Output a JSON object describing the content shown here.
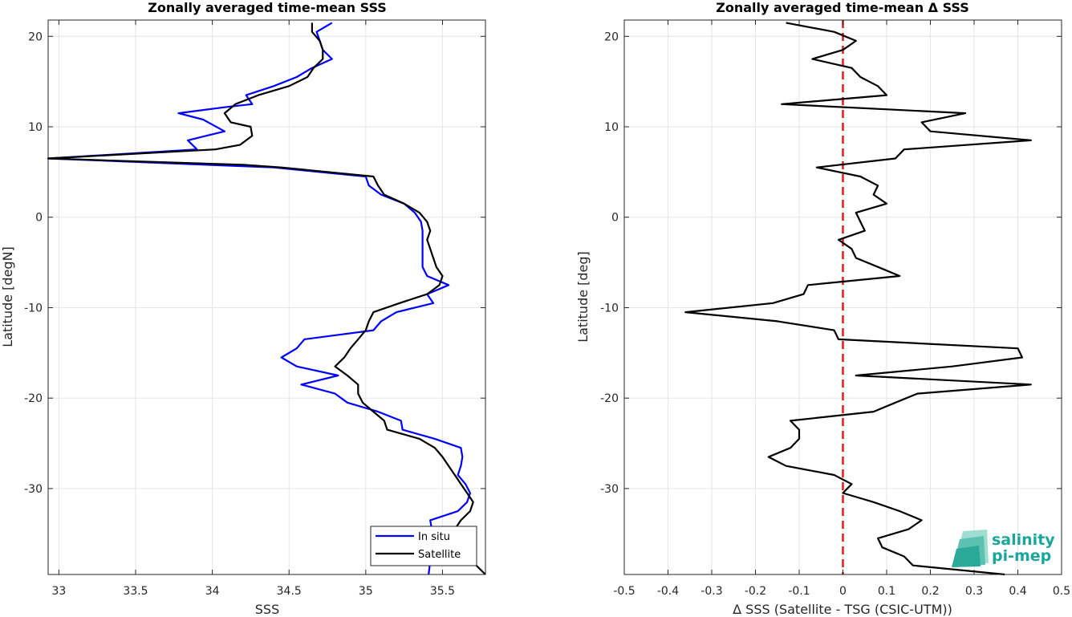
{
  "chart_data": [
    {
      "type": "line",
      "title": "Zonally averaged time-mean SSS",
      "xlabel": "SSS",
      "ylabel": "Latitude [degN]",
      "xlim": [
        32.93,
        35.78
      ],
      "ylim": [
        -39.5,
        21.8
      ],
      "xticks": [
        33,
        33.5,
        34,
        34.5,
        35,
        35.5
      ],
      "yticks": [
        -30,
        -20,
        -10,
        0,
        10,
        20
      ],
      "grid": true,
      "legend": "bottom-right",
      "series": [
        {
          "name": "In situ",
          "color": "#0000ff",
          "points": [
            [
              34.78,
              21.5
            ],
            [
              34.68,
              20.5
            ],
            [
              34.7,
              19.5
            ],
            [
              34.72,
              18.5
            ],
            [
              34.78,
              17.5
            ],
            [
              34.65,
              16.5
            ],
            [
              34.55,
              15.5
            ],
            [
              34.4,
              14.5
            ],
            [
              34.22,
              13.5
            ],
            [
              34.26,
              12.5
            ],
            [
              34.1,
              12.2
            ],
            [
              33.78,
              11.5
            ],
            [
              33.94,
              10.8
            ],
            [
              34.08,
              9.5
            ],
            [
              33.84,
              8.5
            ],
            [
              33.9,
              7.5
            ],
            [
              32.93,
              6.5
            ],
            [
              34.4,
              5.5
            ],
            [
              35.0,
              4.5
            ],
            [
              35.02,
              3.5
            ],
            [
              35.1,
              2.5
            ],
            [
              35.25,
              1.5
            ],
            [
              35.32,
              0.5
            ],
            [
              35.36,
              -0.5
            ],
            [
              35.37,
              -1.5
            ],
            [
              35.37,
              -2.5
            ],
            [
              35.37,
              -3.5
            ],
            [
              35.37,
              -4.5
            ],
            [
              35.37,
              -5.5
            ],
            [
              35.4,
              -6.5
            ],
            [
              35.54,
              -7.5
            ],
            [
              35.4,
              -8.5
            ],
            [
              35.44,
              -9.5
            ],
            [
              35.2,
              -10.5
            ],
            [
              35.1,
              -11.5
            ],
            [
              35.05,
              -12.5
            ],
            [
              34.6,
              -13.5
            ],
            [
              34.55,
              -14.5
            ],
            [
              34.45,
              -15.5
            ],
            [
              34.55,
              -16.5
            ],
            [
              34.82,
              -17.5
            ],
            [
              34.58,
              -18.5
            ],
            [
              34.8,
              -19.5
            ],
            [
              34.88,
              -20.5
            ],
            [
              35.08,
              -21.5
            ],
            [
              35.23,
              -22.5
            ],
            [
              35.24,
              -23.5
            ],
            [
              35.45,
              -24.5
            ],
            [
              35.62,
              -25.5
            ],
            [
              35.63,
              -26.5
            ],
            [
              35.62,
              -27.5
            ],
            [
              35.6,
              -28.5
            ],
            [
              35.65,
              -29.5
            ],
            [
              35.68,
              -30.5
            ],
            [
              35.66,
              -31.5
            ],
            [
              35.6,
              -32.5
            ],
            [
              35.42,
              -33.5
            ],
            [
              35.43,
              -34.5
            ],
            [
              35.42,
              -36.5
            ],
            [
              35.42,
              -38.0
            ],
            [
              35.41,
              -39.5
            ]
          ]
        },
        {
          "name": "Satellite",
          "color": "#000000",
          "points": [
            [
              34.65,
              21.5
            ],
            [
              34.65,
              20.5
            ],
            [
              34.7,
              19.5
            ],
            [
              34.72,
              18.5
            ],
            [
              34.72,
              17.5
            ],
            [
              34.66,
              16.5
            ],
            [
              34.62,
              15.5
            ],
            [
              34.5,
              14.5
            ],
            [
              34.3,
              13.5
            ],
            [
              34.15,
              12.5
            ],
            [
              34.08,
              11.5
            ],
            [
              34.12,
              10.5
            ],
            [
              34.25,
              10.0
            ],
            [
              34.26,
              9.0
            ],
            [
              34.18,
              8.0
            ],
            [
              34.02,
              7.5
            ],
            [
              32.93,
              6.5
            ],
            [
              34.2,
              5.8
            ],
            [
              34.45,
              5.5
            ],
            [
              35.05,
              4.5
            ],
            [
              35.08,
              3.5
            ],
            [
              35.12,
              2.5
            ],
            [
              35.25,
              1.5
            ],
            [
              35.35,
              0.5
            ],
            [
              35.4,
              -0.5
            ],
            [
              35.42,
              -1.5
            ],
            [
              35.4,
              -2.5
            ],
            [
              35.42,
              -3.5
            ],
            [
              35.44,
              -4.5
            ],
            [
              35.46,
              -5.5
            ],
            [
              35.5,
              -6.5
            ],
            [
              35.48,
              -7.5
            ],
            [
              35.4,
              -8.5
            ],
            [
              35.22,
              -9.5
            ],
            [
              35.05,
              -10.5
            ],
            [
              35.02,
              -11.5
            ],
            [
              35.0,
              -12.5
            ],
            [
              34.95,
              -13.5
            ],
            [
              34.9,
              -14.5
            ],
            [
              34.86,
              -15.5
            ],
            [
              34.8,
              -16.5
            ],
            [
              34.88,
              -17.5
            ],
            [
              34.95,
              -18.5
            ],
            [
              34.95,
              -19.5
            ],
            [
              34.98,
              -20.5
            ],
            [
              35.05,
              -21.5
            ],
            [
              35.12,
              -22.5
            ],
            [
              35.14,
              -23.5
            ],
            [
              35.35,
              -24.5
            ],
            [
              35.45,
              -25.5
            ],
            [
              35.5,
              -26.5
            ],
            [
              35.54,
              -27.5
            ],
            [
              35.58,
              -28.5
            ],
            [
              35.62,
              -29.5
            ],
            [
              35.66,
              -30.5
            ],
            [
              35.7,
              -31.5
            ],
            [
              35.68,
              -32.5
            ],
            [
              35.62,
              -33.5
            ],
            [
              35.58,
              -34.5
            ],
            [
              35.6,
              -35.5
            ],
            [
              35.62,
              -36.5
            ],
            [
              35.66,
              -37.5
            ],
            [
              35.72,
              -38.5
            ],
            [
              35.78,
              -39.5
            ]
          ]
        }
      ]
    },
    {
      "type": "line",
      "title": "Zonally averaged time-mean Δ SSS",
      "xlabel": "Δ SSS (Satellite - TSG (CSIC-UTM))",
      "ylabel": "Latitude [deg]",
      "xlim": [
        -0.5,
        0.5
      ],
      "ylim": [
        -39.5,
        21.8
      ],
      "xticks": [
        -0.5,
        -0.4,
        -0.3,
        -0.2,
        -0.1,
        0,
        0.1,
        0.2,
        0.3,
        0.4,
        0.5
      ],
      "yticks": [
        -30,
        -20,
        -10,
        0,
        10,
        20
      ],
      "grid": true,
      "reference_line": {
        "x": 0,
        "color": "#e41a1c",
        "style": "dashed"
      },
      "series": [
        {
          "color": "#000000",
          "points": [
            [
              -0.13,
              21.5
            ],
            [
              -0.02,
              20.5
            ],
            [
              0.03,
              19.5
            ],
            [
              0.0,
              18.5
            ],
            [
              -0.07,
              17.5
            ],
            [
              0.02,
              16.5
            ],
            [
              0.04,
              15.5
            ],
            [
              0.08,
              14.5
            ],
            [
              0.1,
              13.5
            ],
            [
              -0.14,
              12.5
            ],
            [
              0.28,
              11.5
            ],
            [
              0.18,
              10.5
            ],
            [
              0.2,
              9.5
            ],
            [
              0.43,
              8.5
            ],
            [
              0.14,
              7.5
            ],
            [
              0.12,
              6.5
            ],
            [
              -0.06,
              5.5
            ],
            [
              0.04,
              4.5
            ],
            [
              0.08,
              3.5
            ],
            [
              0.07,
              2.5
            ],
            [
              0.1,
              1.5
            ],
            [
              0.03,
              0.5
            ],
            [
              0.04,
              -0.5
            ],
            [
              0.05,
              -1.5
            ],
            [
              -0.01,
              -2.5
            ],
            [
              0.02,
              -3.5
            ],
            [
              0.03,
              -4.5
            ],
            [
              0.08,
              -5.5
            ],
            [
              0.13,
              -6.5
            ],
            [
              -0.08,
              -7.5
            ],
            [
              -0.09,
              -8.5
            ],
            [
              -0.16,
              -9.5
            ],
            [
              -0.36,
              -10.5
            ],
            [
              -0.15,
              -11.5
            ],
            [
              -0.02,
              -12.5
            ],
            [
              -0.01,
              -13.5
            ],
            [
              0.4,
              -14.5
            ],
            [
              0.41,
              -15.5
            ],
            [
              0.25,
              -16.5
            ],
            [
              0.03,
              -17.5
            ],
            [
              0.43,
              -18.5
            ],
            [
              0.17,
              -19.5
            ],
            [
              0.12,
              -20.5
            ],
            [
              0.07,
              -21.5
            ],
            [
              -0.12,
              -22.5
            ],
            [
              -0.1,
              -23.5
            ],
            [
              -0.1,
              -24.5
            ],
            [
              -0.12,
              -25.5
            ],
            [
              -0.17,
              -26.5
            ],
            [
              -0.13,
              -27.5
            ],
            [
              -0.02,
              -28.5
            ],
            [
              0.02,
              -29.5
            ],
            [
              0.0,
              -30.5
            ],
            [
              0.07,
              -31.5
            ],
            [
              0.13,
              -32.5
            ],
            [
              0.18,
              -33.5
            ],
            [
              0.15,
              -34.5
            ],
            [
              0.08,
              -35.5
            ],
            [
              0.09,
              -36.5
            ],
            [
              0.14,
              -37.5
            ],
            [
              0.16,
              -38.5
            ],
            [
              0.37,
              -39.5
            ]
          ]
        }
      ]
    }
  ],
  "logo": {
    "line1": "salinity",
    "line2": "pi-mep",
    "color": "#1aa69a"
  }
}
